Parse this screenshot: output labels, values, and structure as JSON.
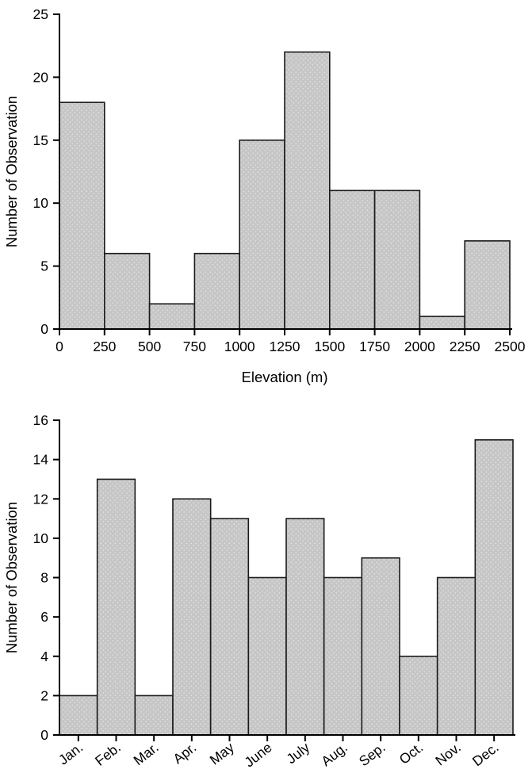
{
  "page": {
    "background": "#ffffff"
  },
  "colors": {
    "bar_fill": "#c6c6c6",
    "bar_dot": "#e3e3e3",
    "bar_stroke": "#1a1a1a",
    "axis": "#000000",
    "text": "#000000"
  },
  "chart_data": [
    {
      "type": "bar",
      "subtype": "histogram",
      "title": "",
      "xlabel": "Elevation (m)",
      "ylabel": "Number of Observation",
      "ylim": [
        0,
        25
      ],
      "ytick_step": 5,
      "y_tick_labels": [
        "0",
        "5",
        "10",
        "15",
        "20",
        "25"
      ],
      "bin_edges": [
        0,
        250,
        500,
        750,
        1000,
        1250,
        1500,
        1750,
        2000,
        2250,
        2500
      ],
      "x_tick_labels": [
        "0",
        "250",
        "500",
        "750",
        "1000",
        "1250",
        "1500",
        "1750",
        "2000",
        "2250",
        "2500"
      ],
      "values": [
        18,
        6,
        2,
        6,
        15,
        22,
        11,
        11,
        1,
        7
      ],
      "grid": false,
      "legend": null
    },
    {
      "type": "bar",
      "subtype": "column",
      "title": "",
      "xlabel": "",
      "ylabel": "Number of Observation",
      "ylim": [
        0,
        16
      ],
      "ytick_step": 2,
      "y_tick_labels": [
        "0",
        "2",
        "4",
        "6",
        "8",
        "10",
        "12",
        "14",
        "16"
      ],
      "categories": [
        "Jan.",
        "Feb.",
        "Mar.",
        "Apr.",
        "May",
        "June",
        "July",
        "Aug.",
        "Sep.",
        "Oct.",
        "Nov.",
        "Dec."
      ],
      "values": [
        2,
        13,
        2,
        12,
        11,
        8,
        11,
        8,
        9,
        4,
        8,
        15
      ],
      "x_label_rotation": -38,
      "grid": false,
      "legend": null
    }
  ]
}
